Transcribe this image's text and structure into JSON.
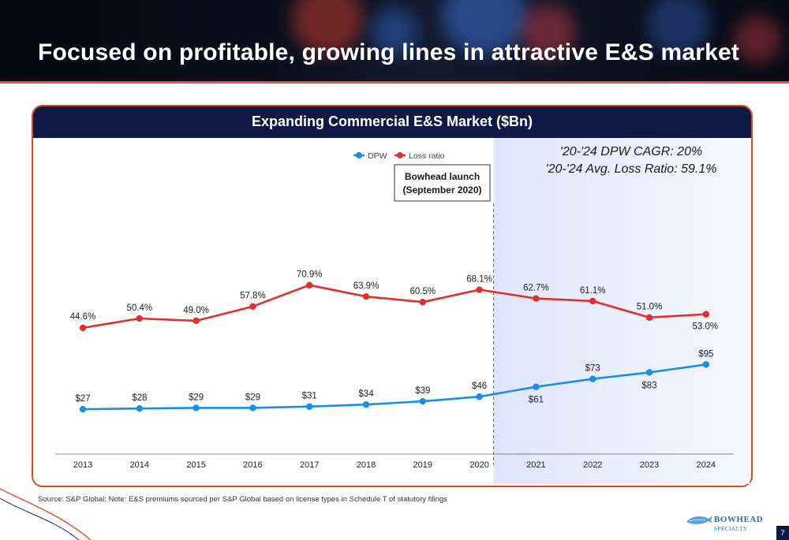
{
  "page": {
    "title": "Focused on profitable, growing lines in attractive E&S market",
    "source": "Source: S&P Global; Note: E&S premiums sourced per S&P Global based on license types in Schedule T of statutory filings",
    "logo_name": "BOWHEAD",
    "logo_sub": "SPECIALTY",
    "page_number": "7"
  },
  "chart_data": {
    "type": "line",
    "title": "Expanding Commercial E&S Market ($Bn)",
    "x": [
      "2013",
      "2014",
      "2015",
      "2016",
      "2017",
      "2018",
      "2019",
      "2020",
      "2021",
      "2022",
      "2023",
      "2024"
    ],
    "series": [
      {
        "name": "DPW",
        "color": "#1a8fe6",
        "values": [
          27,
          28,
          29,
          29,
          31,
          34,
          39,
          46,
          61,
          73,
          83,
          95
        ],
        "labels": [
          "$27",
          "$28",
          "$29",
          "$29",
          "$31",
          "$34",
          "$39",
          "$46",
          "$61",
          "$73",
          "$83",
          "$95"
        ]
      },
      {
        "name": "Loss ratio",
        "color": "#e0302c",
        "values": [
          44.6,
          50.4,
          49.0,
          57.8,
          70.9,
          63.9,
          60.5,
          68.1,
          62.7,
          61.1,
          51.0,
          53.0
        ],
        "labels": [
          "44.6%",
          "50.4%",
          "49.0%",
          "57.8%",
          "70.9%",
          "63.9%",
          "60.5%",
          "68.1%",
          "62.7%",
          "61.1%",
          "51.0%",
          "53.0%"
        ]
      }
    ],
    "legend_position": "top-center",
    "callout": [
      "Bowhead launch",
      "(September 2020)"
    ],
    "summary": [
      "'20-'24 DPW CAGR: 20%",
      "'20-'24 Avg. Loss Ratio: 59.1%"
    ],
    "shaded_from": "2020",
    "grid": false
  }
}
